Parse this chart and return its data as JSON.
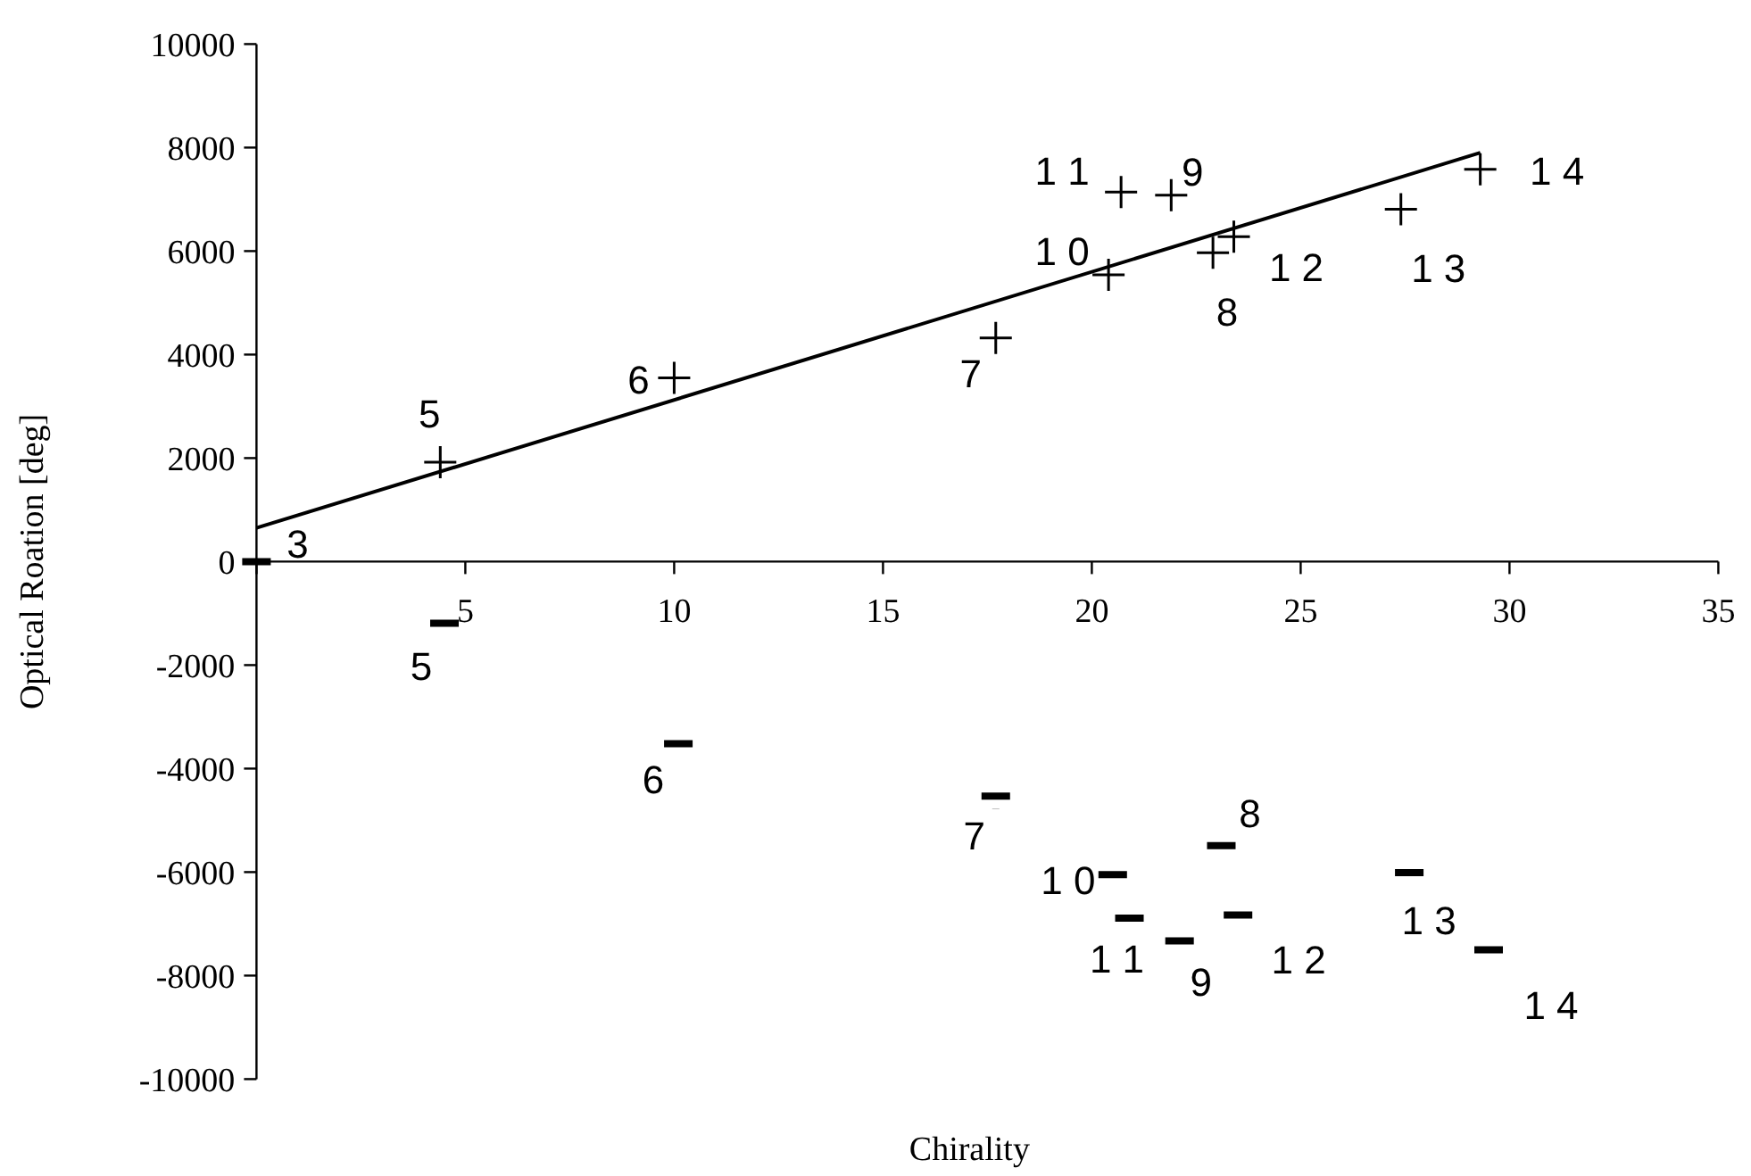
{
  "chart_data": {
    "type": "scatter",
    "xlabel": "Chirality",
    "ylabel": "Optical Roation [deg]",
    "xlim": [
      0,
      35
    ],
    "xticks": [
      {
        "value": 0,
        "label": null
      },
      5,
      10,
      15,
      20,
      25,
      30,
      35
    ],
    "ylim": [
      -10000,
      10000
    ],
    "yticks": [
      -10000,
      -8000,
      -6000,
      -4000,
      -2000,
      0,
      2000,
      4000,
      6000,
      8000,
      10000
    ],
    "series": [
      {
        "type": "scatter",
        "marker": "cross",
        "color": "#000000",
        "x": [
          4.4,
          10.0,
          17.7,
          20.4,
          20.7,
          21.9,
          22.9,
          23.4,
          27.4,
          29.3
        ],
        "values": [
          1920,
          3550,
          4320,
          5540,
          7140,
          7080,
          5970,
          6280,
          6810,
          7580
        ]
      },
      {
        "type": "scatter",
        "color": "#000000",
        "x": [
          0,
          4.5,
          10.1,
          17.7,
          20.5,
          20.9,
          22.1,
          23.1,
          23.5,
          27.6,
          29.5
        ],
        "values": [
          0,
          -1190,
          -3520,
          -4530,
          -6050,
          -6890,
          -7330,
          -5490,
          -6830,
          -6010,
          -7500
        ]
      },
      {
        "type": "line",
        "marker": "none",
        "line_style": "solid",
        "color": "#000000",
        "x": [
          0,
          29.3
        ],
        "values": [
          650,
          7900
        ]
      }
    ],
    "annotations": [
      {
        "text": "3",
        "x": 0,
        "y": 0
      },
      {
        "text": "5",
        "x": 4.4,
        "y": 1920
      },
      {
        "text": "6",
        "x": 10.0,
        "y": 3550
      },
      {
        "text": "7",
        "x": 17.7,
        "y": 4320
      },
      {
        "text": "1 1",
        "x": 20.7,
        "y": 7140
      },
      {
        "text": "9",
        "x": 21.9,
        "y": 7080
      },
      {
        "text": "1 0",
        "x": 20.4,
        "y": 5540
      },
      {
        "text": "1 2",
        "x": 23.4,
        "y": 6280
      },
      {
        "text": "8",
        "x": 22.9,
        "y": 5970
      },
      {
        "text": "1 3",
        "x": 27.4,
        "y": 6810
      },
      {
        "text": "1 4",
        "x": 29.3,
        "y": 7580
      },
      {
        "text": "5",
        "x": 4.5,
        "y": -1190
      },
      {
        "text": "6",
        "x": 10.1,
        "y": -3520
      },
      {
        "text": "7",
        "x": 17.7,
        "y": -4530
      },
      {
        "text": "1 0",
        "x": 20.5,
        "y": -6050
      },
      {
        "text": "1 1",
        "x": 20.9,
        "y": -6890
      },
      {
        "text": "9",
        "x": 22.1,
        "y": -7330
      },
      {
        "text": "8",
        "x": 23.1,
        "y": -5490
      },
      {
        "text": "1 2",
        "x": 23.5,
        "y": -6830
      },
      {
        "text": "1 3",
        "x": 27.6,
        "y": -6010
      },
      {
        "text": "1 4",
        "x": 29.5,
        "y": -7500
      }
    ]
  }
}
